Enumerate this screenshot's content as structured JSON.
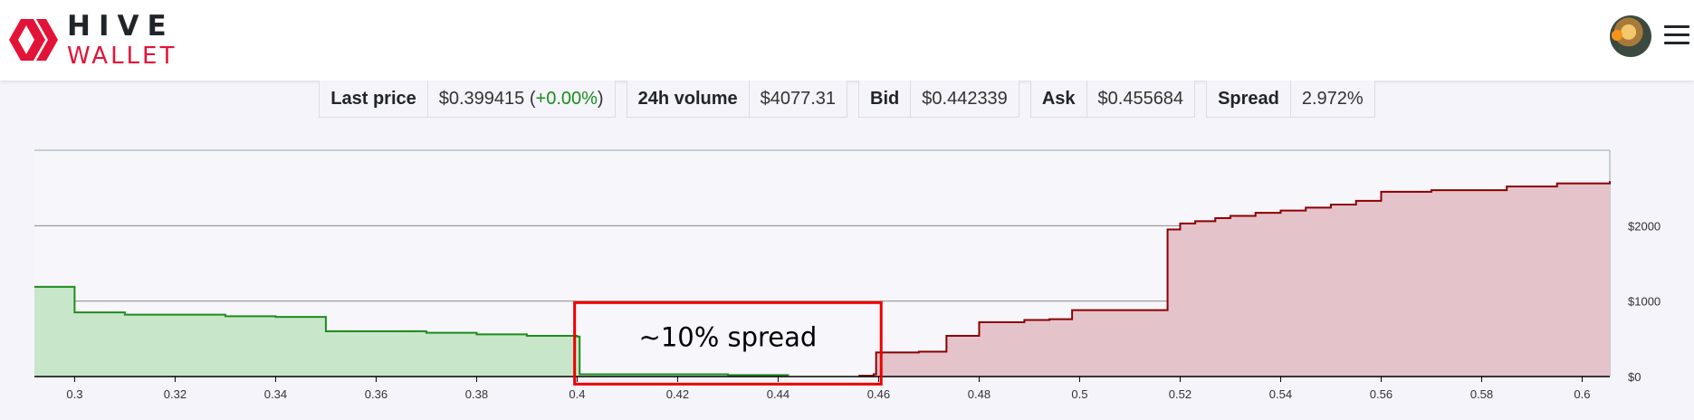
{
  "header": {
    "logo_line1": "HIVE",
    "logo_line2": "WALLET",
    "brand_color": "#e31337",
    "avatar_icon": "user-avatar",
    "menu_icon": "hamburger-menu-icon"
  },
  "stats": {
    "last_price_label": "Last price",
    "last_price_value": "$0.399415",
    "last_price_change": "+0.00%",
    "volume_label": "24h volume",
    "volume_value": "$4077.31",
    "bid_label": "Bid",
    "bid_value": "$0.442339",
    "ask_label": "Ask",
    "ask_value": "$0.455684",
    "spread_label": "Spread",
    "spread_value": "2.972%"
  },
  "annotation": {
    "text": "~10% spread",
    "color": "#ee0000"
  },
  "chart_data": {
    "type": "area",
    "xlim": [
      0.292,
      0.6055
    ],
    "ylim": [
      0,
      3000
    ],
    "x_ticks": [
      "0.3",
      "0.32",
      "0.34",
      "0.36",
      "0.38",
      "0.4",
      "0.42",
      "0.44",
      "0.46",
      "0.48",
      "0.5",
      "0.52",
      "0.54",
      "0.56",
      "0.58",
      "0.6"
    ],
    "y_ticks": [
      "$0",
      "$1000",
      "$2000"
    ],
    "grid": true,
    "series": [
      {
        "side": "bids",
        "color": "#1e8c1e",
        "fill": "#c8e6c9",
        "points": [
          [
            0.292,
            1190
          ],
          [
            0.3,
            1190
          ],
          [
            0.3,
            850
          ],
          [
            0.31,
            850
          ],
          [
            0.31,
            820
          ],
          [
            0.33,
            800
          ],
          [
            0.34,
            790
          ],
          [
            0.35,
            780
          ],
          [
            0.35,
            600
          ],
          [
            0.37,
            580
          ],
          [
            0.38,
            560
          ],
          [
            0.39,
            540
          ],
          [
            0.4,
            530
          ],
          [
            0.4005,
            30
          ],
          [
            0.43,
            20
          ],
          [
            0.442,
            15
          ]
        ]
      },
      {
        "side": "asks",
        "color": "#8b0000",
        "fill": "#e5c3cb",
        "points": [
          [
            0.456,
            10
          ],
          [
            0.459,
            30
          ],
          [
            0.4595,
            320
          ],
          [
            0.468,
            330
          ],
          [
            0.4735,
            330
          ],
          [
            0.4735,
            540
          ],
          [
            0.48,
            540
          ],
          [
            0.48,
            720
          ],
          [
            0.489,
            750
          ],
          [
            0.494,
            760
          ],
          [
            0.4985,
            780
          ],
          [
            0.4985,
            880
          ],
          [
            0.517,
            880
          ],
          [
            0.5175,
            1950
          ],
          [
            0.52,
            2030
          ],
          [
            0.523,
            2060
          ],
          [
            0.527,
            2100
          ],
          [
            0.53,
            2130
          ],
          [
            0.535,
            2170
          ],
          [
            0.54,
            2200
          ],
          [
            0.545,
            2240
          ],
          [
            0.55,
            2280
          ],
          [
            0.555,
            2330
          ],
          [
            0.56,
            2450
          ],
          [
            0.57,
            2470
          ],
          [
            0.585,
            2520
          ],
          [
            0.595,
            2560
          ],
          [
            0.6055,
            2590
          ]
        ]
      }
    ]
  }
}
